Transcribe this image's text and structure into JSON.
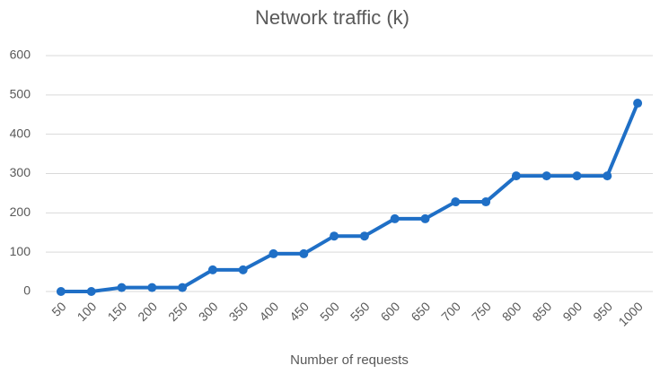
{
  "chart_data": {
    "type": "line",
    "title": "Network traffic (k)",
    "x_label": "Number of requests",
    "categories": [
      "50",
      "100",
      "150",
      "200",
      "250",
      "300",
      "350",
      "400",
      "450",
      "500",
      "550",
      "600",
      "650",
      "700",
      "750",
      "800",
      "850",
      "900",
      "950",
      "1000"
    ],
    "series": [
      {
        "name": "Network traffic (k)",
        "color": "#1f6fc6",
        "values": [
          0,
          0,
          10,
          10,
          10,
          55,
          55,
          96,
          96,
          141,
          141,
          185,
          185,
          228,
          228,
          294,
          294,
          294,
          294,
          479
        ]
      }
    ],
    "ylim": [
      0,
      600
    ],
    "yticks": [
      0,
      100,
      200,
      300,
      400,
      500,
      600
    ],
    "grid": true
  }
}
